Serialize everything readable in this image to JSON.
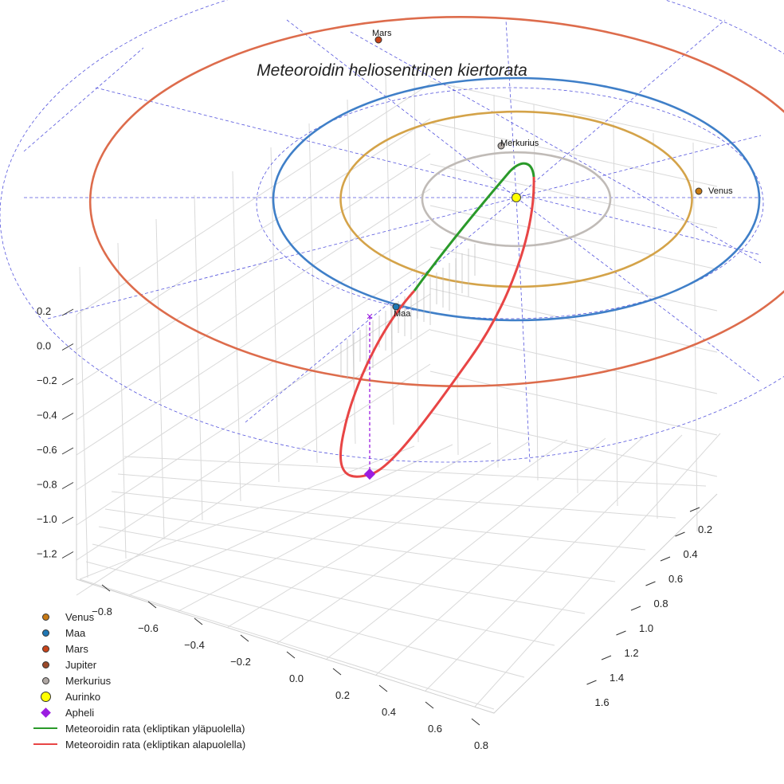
{
  "chart_data": {
    "type": "scatter",
    "projection": "3d",
    "title": "Meteoroidin heliosentrinen kiertorata",
    "xlabel": "",
    "ylabel": "",
    "zlabel": "",
    "x_ticks": [
      "−0.8",
      "−0.6",
      "−0.4",
      "−0.2",
      "0.0",
      "0.2",
      "0.4",
      "0.6",
      "0.8"
    ],
    "y_ticks": [
      "0.2",
      "0.4",
      "0.6",
      "0.8",
      "1.0",
      "1.2",
      "1.4",
      "1.6"
    ],
    "z_ticks": [
      "0.2",
      "0.0",
      "−0.2",
      "−0.4",
      "−0.6",
      "−0.8",
      "−1.0",
      "−1.2"
    ],
    "grid": true,
    "legend_position": "bottom-left",
    "planets": [
      {
        "name": "Merkurius",
        "orbit_radius_au": 0.387,
        "color": "#b0a8a4",
        "orbit_color": "#c0bbb7"
      },
      {
        "name": "Venus",
        "orbit_radius_au": 0.723,
        "color": "#c87a14",
        "orbit_color": "#d4a349"
      },
      {
        "name": "Maa",
        "orbit_radius_au": 1.0,
        "color": "#1f77b4",
        "orbit_color": "#3f7fc8"
      },
      {
        "name": "Mars",
        "orbit_radius_au": 1.524,
        "color": "#c8441a",
        "orbit_color": "#dd6c4c"
      }
    ],
    "sun": {
      "name": "Aurinko",
      "color": "#ffff00"
    },
    "meteoroid_orbit": {
      "segments": [
        {
          "name": "Meteoroidin rata (ekliptikan yläpuolella)",
          "color": "#2a9a2a"
        },
        {
          "name": "Meteoroidin rata (ekliptikan alapuolella)",
          "color": "#e84545"
        }
      ],
      "aphelion": {
        "name": "Apheli",
        "color": "#9b1de0"
      }
    },
    "annotations": [
      "Mars",
      "Merkurius",
      "Venus",
      "Maa"
    ]
  },
  "legend": [
    {
      "label": "Venus",
      "kind": "dot",
      "color": "#c87a14"
    },
    {
      "label": "Maa",
      "kind": "dot",
      "color": "#1f77b4"
    },
    {
      "label": "Mars",
      "kind": "dot",
      "color": "#c8441a"
    },
    {
      "label": "Jupiter",
      "kind": "dot",
      "color": "#9b4a2a"
    },
    {
      "label": "Merkurius",
      "kind": "dot",
      "color": "#b0a8a4"
    },
    {
      "label": "Aurinko",
      "kind": "bigdot",
      "color": "#ffff00"
    },
    {
      "label": "Apheli",
      "kind": "diamond",
      "color": "#9b1de0"
    },
    {
      "label": "Meteoroidin rata (ekliptikan yläpuolella)",
      "kind": "line",
      "color": "#2a9a2a"
    },
    {
      "label": "Meteoroidin rata (ekliptikan alapuolella)",
      "kind": "line",
      "color": "#e84545"
    }
  ]
}
